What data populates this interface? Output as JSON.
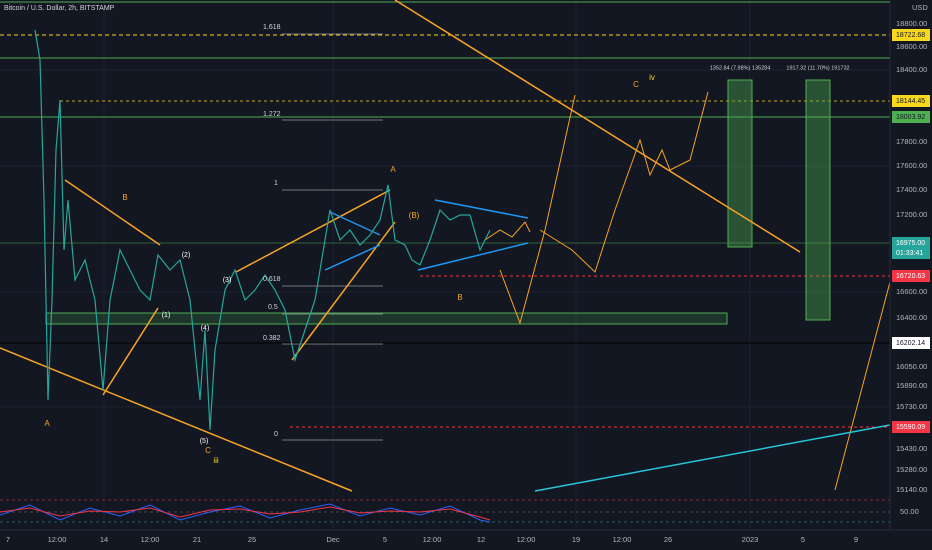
{
  "header": {
    "title": "Bitcoin / U.S. Dollar, 2h, BITSTAMP",
    "currency": "USD"
  },
  "price_axis": [
    "18800.00",
    "18600.00",
    "18400.00",
    "17800.00",
    "17600.00",
    "17400.00",
    "17200.00",
    "16600.00",
    "16400.00",
    "16050.00",
    "15890.00",
    "15730.00",
    "15430.00",
    "15280.00",
    "15140.00",
    "50.00"
  ],
  "price_tags": [
    "18722.68",
    "18144.45",
    "18003.92",
    "16975.00",
    "01:33:41",
    "16720.63",
    "16202.14",
    "15590.09"
  ],
  "date_axis": [
    "7",
    "12:00",
    "14",
    "12:00",
    "21",
    "25",
    "Dec",
    "5",
    "12:00",
    "12",
    "12:00",
    "19",
    "12:00",
    "26",
    "2023",
    "5",
    "9"
  ],
  "fib_levels": [
    "1.618",
    "1.272",
    "1",
    "0.618",
    "0.5",
    "0.382",
    "0"
  ],
  "measures": [
    "1352.84 (7.98%) 135284",
    "1917.32 (11.70%) 191732"
  ],
  "waves": [
    "A",
    "B",
    "C",
    "iii",
    "iv",
    "(5)",
    "(4)",
    "(3)",
    "(2)",
    "(1)",
    "A",
    "B",
    "C",
    "(B)"
  ]
}
